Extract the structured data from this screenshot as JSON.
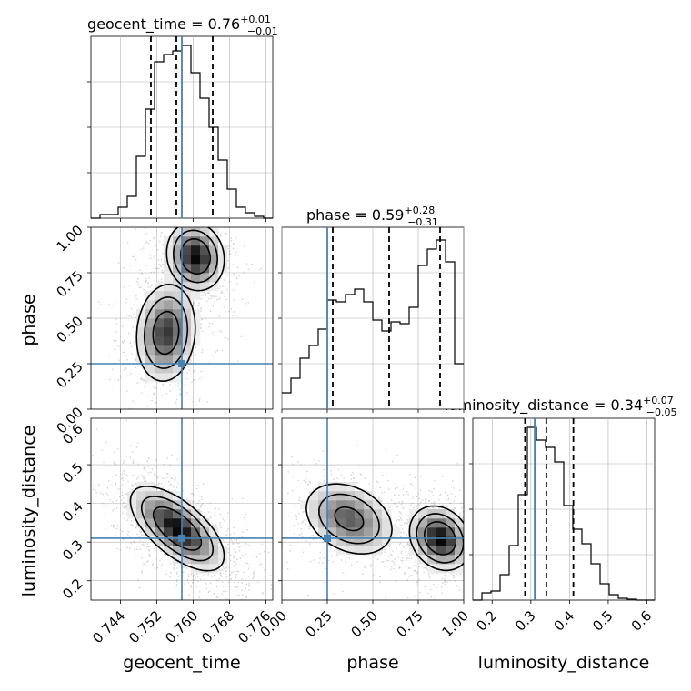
{
  "chart_data": {
    "type": "corner",
    "parameters": [
      "geocent_time",
      "phase",
      "luminosity_distance"
    ],
    "titles": [
      {
        "param": "geocent_time",
        "name": "geocent_time",
        "median": "0.76",
        "plus": "+0.01",
        "minus": "−0.01"
      },
      {
        "param": "phase",
        "name": "phase",
        "median": "0.59",
        "plus": "+0.28",
        "minus": "−0.31"
      },
      {
        "param": "luminosity_distance",
        "name": "luminosity_distance",
        "median": "0.34",
        "plus": "+0.07",
        "minus": "−0.05"
      }
    ],
    "ranges": {
      "geocent_time": [
        0.7375,
        0.7775
      ],
      "phase": [
        0.0,
        1.0
      ],
      "luminosity_distance": [
        0.15,
        0.62
      ]
    },
    "ticks": {
      "geocent_time": {
        "values": [
          0.744,
          0.752,
          0.76,
          0.768,
          0.776
        ],
        "labels": [
          "0.744",
          "0.752",
          "0.760",
          "0.768",
          "0.776"
        ]
      },
      "phase": {
        "values": [
          0.0,
          0.25,
          0.5,
          0.75,
          1.0
        ],
        "labels": [
          "0.00",
          "0.25",
          "0.50",
          "0.75",
          "1.00"
        ]
      },
      "luminosity_distance": {
        "values": [
          0.2,
          0.3,
          0.4,
          0.5,
          0.6
        ],
        "labels": [
          "0.2",
          "0.3",
          "0.4",
          "0.5",
          "0.6"
        ]
      }
    },
    "truths": {
      "geocent_time": 0.7575,
      "phase": 0.25,
      "luminosity_distance": 0.31
    },
    "quantiles": {
      "geocent_time": [
        0.7507,
        0.7563,
        0.7643
      ],
      "phase": [
        0.28,
        0.59,
        0.87
      ],
      "luminosity_distance": [
        0.285,
        0.34,
        0.41
      ]
    },
    "histograms": {
      "geocent_time": {
        "edges": [
          0.7375,
          0.7395,
          0.7415,
          0.7435,
          0.7455,
          0.7475,
          0.7495,
          0.7515,
          0.7535,
          0.7555,
          0.7575,
          0.7595,
          0.7615,
          0.7635,
          0.7655,
          0.7675,
          0.7695,
          0.7715,
          0.7735,
          0.7755,
          0.7775
        ],
        "values": [
          0,
          0.02,
          0.02,
          0.06,
          0.12,
          0.34,
          0.6,
          0.86,
          0.9,
          0.92,
          0.95,
          0.8,
          0.66,
          0.5,
          0.32,
          0.16,
          0.06,
          0.03,
          0.01,
          0
        ]
      },
      "phase": {
        "edges": [
          0.0,
          0.05,
          0.1,
          0.15,
          0.2,
          0.25,
          0.3,
          0.35,
          0.4,
          0.45,
          0.5,
          0.55,
          0.6,
          0.65,
          0.7,
          0.75,
          0.8,
          0.85,
          0.9,
          0.95,
          1.0
        ],
        "values": [
          0.09,
          0.17,
          0.28,
          0.35,
          0.44,
          0.6,
          0.59,
          0.63,
          0.66,
          0.59,
          0.49,
          0.43,
          0.48,
          0.47,
          0.56,
          0.79,
          0.88,
          0.93,
          0.81,
          0.25
        ]
      },
      "luminosity_distance": {
        "edges": [
          0.15,
          0.1735,
          0.197,
          0.2205,
          0.244,
          0.2675,
          0.291,
          0.3145,
          0.338,
          0.3615,
          0.385,
          0.4085,
          0.432,
          0.4555,
          0.479,
          0.5025,
          0.526,
          0.5495,
          0.573,
          0.5965,
          0.62
        ],
        "values": [
          0,
          0.04,
          0.05,
          0.14,
          0.3,
          0.58,
          0.95,
          0.88,
          0.84,
          0.76,
          0.52,
          0.39,
          0.31,
          0.2,
          0.09,
          0.03,
          0.01,
          0.005,
          0,
          0
        ]
      }
    },
    "pairs": [
      {
        "x": "geocent_time",
        "y": "phase",
        "blobs": [
          {
            "cx": 0.7605,
            "cy": 0.84,
            "sx": 0.0032,
            "sy": 0.095,
            "w": 1.0,
            "rho": -0.1
          },
          {
            "cx": 0.754,
            "cy": 0.42,
            "sx": 0.0034,
            "sy": 0.14,
            "w": 0.85,
            "rho": 0.1
          }
        ]
      },
      {
        "x": "geocent_time",
        "y": "luminosity_distance",
        "blobs": [
          {
            "cx": 0.7565,
            "cy": 0.335,
            "sx": 0.0052,
            "sy": 0.055,
            "w": 1.0,
            "rho": -0.65
          }
        ]
      },
      {
        "x": "phase",
        "y": "luminosity_distance",
        "blobs": [
          {
            "cx": 0.87,
            "cy": 0.31,
            "sx": 0.085,
            "sy": 0.042,
            "w": 1.0,
            "rho": -0.2
          },
          {
            "cx": 0.37,
            "cy": 0.36,
            "sx": 0.13,
            "sy": 0.05,
            "w": 0.72,
            "rho": -0.3
          }
        ]
      }
    ]
  },
  "colors": {
    "truth": "#4682b4",
    "hist": "#000000",
    "grid": "#b0b0b0",
    "points": "#9a9a9a"
  }
}
